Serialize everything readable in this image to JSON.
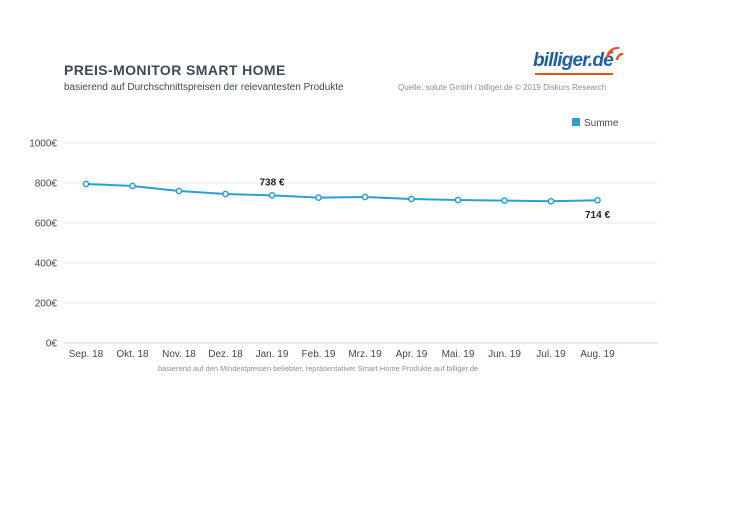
{
  "header": {
    "title": "PREIS-MONITOR SMART HOME",
    "subtitle": "basierend auf Durchschnittspreisen der relevantesten Produkte",
    "source": "Quelle: solute GmbH / billiger.de © 2019 Diskurs Research"
  },
  "logo": {
    "text": "billiger.de",
    "accent_color": "#e94e1b",
    "brand_color": "#1f5fa8"
  },
  "footnote": "basierend auf den Mindestpreisen beliebter, repräsentativer Smart Home Produkte auf billiger.de",
  "chart_data": {
    "type": "line",
    "categories": [
      "Sep. 18",
      "Okt. 18",
      "Nov. 18",
      "Dez. 18",
      "Jan. 19",
      "Feb. 19",
      "Mrz. 19",
      "Apr. 19",
      "Mai. 19",
      "Jun. 19",
      "Jul. 19",
      "Aug. 19"
    ],
    "series": [
      {
        "name": "Summe",
        "color": "#2a9fd6",
        "values": [
          795,
          785,
          760,
          745,
          738,
          727,
          730,
          720,
          715,
          712,
          709,
          714
        ]
      }
    ],
    "ylim": [
      0,
      1000
    ],
    "yticks": [
      0,
      200,
      400,
      600,
      800,
      1000
    ],
    "ytick_labels": [
      "0€",
      "200€",
      "400€",
      "600€",
      "800€",
      "1000€"
    ],
    "grid": true,
    "legend": "top-right",
    "annotations": [
      {
        "index": 4,
        "text": "738 €"
      },
      {
        "index": 11,
        "text": "714 €"
      }
    ]
  }
}
